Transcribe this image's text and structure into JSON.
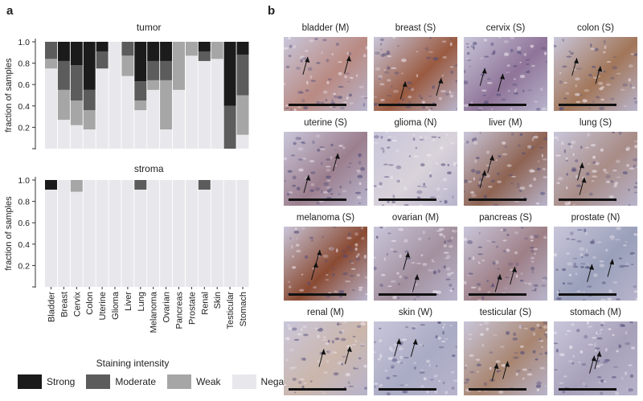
{
  "panel_a_letter": "a",
  "panel_b_letter": "b",
  "chart_data": [
    {
      "type": "bar",
      "stacked": true,
      "title": "tumor",
      "ylabel": "fraction of samples",
      "ylim": [
        0,
        1.0
      ],
      "yticks": [
        "0.2",
        "0.4",
        "0.6",
        "0.8",
        "1.0"
      ],
      "categories": [
        "Bladder",
        "Breast",
        "Cervix",
        "Colon",
        "Uterine",
        "Glioma",
        "Liver",
        "Lung",
        "Melanoma",
        "Ovarian",
        "Pancreas",
        "Prostate",
        "Renal",
        "Skin",
        "Testicular",
        "Stomach"
      ],
      "series": [
        {
          "name": "Negative",
          "color": "#e8e8ec",
          "values": [
            0.75,
            0.27,
            0.22,
            0.18,
            0.75,
            1.0,
            0.68,
            0.36,
            0.55,
            0.18,
            0.55,
            0.87,
            0.82,
            0.84,
            0.0,
            0.13
          ]
        },
        {
          "name": "Weak",
          "color": "#a6a6a6",
          "values": [
            0.09,
            0.28,
            0.23,
            0.18,
            0.0,
            0.0,
            0.19,
            0.09,
            0.09,
            0.46,
            0.45,
            0.13,
            0.0,
            0.16,
            0.0,
            0.37
          ]
        },
        {
          "name": "Moderate",
          "color": "#5c5c5c",
          "values": [
            0.16,
            0.27,
            0.33,
            0.19,
            0.16,
            0.0,
            0.13,
            0.18,
            0.18,
            0.18,
            0.0,
            0.0,
            0.09,
            0.0,
            0.4,
            0.38
          ]
        },
        {
          "name": "Strong",
          "color": "#1b1b1b",
          "values": [
            0.0,
            0.18,
            0.22,
            0.45,
            0.09,
            0.0,
            0.0,
            0.37,
            0.18,
            0.18,
            0.0,
            0.0,
            0.09,
            0.0,
            0.6,
            0.12
          ]
        }
      ]
    },
    {
      "type": "bar",
      "stacked": true,
      "title": "stroma",
      "ylabel": "fraction of samples",
      "ylim": [
        0,
        1.0
      ],
      "yticks": [
        "0.2",
        "0.4",
        "0.6",
        "0.8",
        "1.0"
      ],
      "categories": [
        "Bladder",
        "Breast",
        "Cervix",
        "Colon",
        "Uterine",
        "Glioma",
        "Liver",
        "Lung",
        "Melanoma",
        "Ovarian",
        "Pancreas",
        "Prostate",
        "Renal",
        "Skin",
        "Testicular",
        "Stomach"
      ],
      "series": [
        {
          "name": "Negative",
          "color": "#e8e8ec",
          "values": [
            0.91,
            1.0,
            0.89,
            1.0,
            1.0,
            1.0,
            1.0,
            0.91,
            1.0,
            1.0,
            1.0,
            1.0,
            0.91,
            1.0,
            1.0,
            1.0
          ]
        },
        {
          "name": "Weak",
          "color": "#a6a6a6",
          "values": [
            0.0,
            0.0,
            0.11,
            0.0,
            0.0,
            0.0,
            0.0,
            0.0,
            0.0,
            0.0,
            0.0,
            0.0,
            0.0,
            0.0,
            0.0,
            0.0
          ]
        },
        {
          "name": "Moderate",
          "color": "#5c5c5c",
          "values": [
            0.0,
            0.0,
            0.0,
            0.0,
            0.0,
            0.0,
            0.0,
            0.09,
            0.0,
            0.0,
            0.0,
            0.0,
            0.09,
            0.0,
            0.0,
            0.0
          ]
        },
        {
          "name": "Strong",
          "color": "#1b1b1b",
          "values": [
            0.09,
            0.0,
            0.0,
            0.0,
            0.0,
            0.0,
            0.0,
            0.0,
            0.0,
            0.0,
            0.0,
            0.0,
            0.0,
            0.0,
            0.0,
            0.0
          ]
        }
      ]
    }
  ],
  "legend": {
    "title": "Staining intensity",
    "items": [
      {
        "label": "Strong",
        "color": "#1b1b1b"
      },
      {
        "label": "Moderate",
        "color": "#5c5c5c"
      },
      {
        "label": "Weak",
        "color": "#a6a6a6"
      },
      {
        "label": "Negative",
        "color": "#e8e8ec"
      }
    ]
  },
  "tiles": [
    {
      "label": "bladder (M)",
      "tone": "#b98a82"
    },
    {
      "label": "breast (S)",
      "tone": "#9a5a40"
    },
    {
      "label": "cervix (S)",
      "tone": "#8f7498"
    },
    {
      "label": "colon (S)",
      "tone": "#a27659"
    },
    {
      "label": "uterine (S)",
      "tone": "#9c7f8e"
    },
    {
      "label": "glioma (N)",
      "tone": "#d9d2da"
    },
    {
      "label": "liver (M)",
      "tone": "#8e6352"
    },
    {
      "label": "lung (S)",
      "tone": "#a88c86"
    },
    {
      "label": "melanoma (S)",
      "tone": "#8a4a32"
    },
    {
      "label": "ovarian (M)",
      "tone": "#a3909e"
    },
    {
      "label": "pancreas (S)",
      "tone": "#9e7f86"
    },
    {
      "label": "prostate (N)",
      "tone": "#9aa0ba"
    },
    {
      "label": "renal (M)",
      "tone": "#cbb6ab"
    },
    {
      "label": "skin (W)",
      "tone": "#a9abc4"
    },
    {
      "label": "testicular (S)",
      "tone": "#a88570"
    },
    {
      "label": "stomach (M)",
      "tone": "#a7a0b9"
    }
  ]
}
